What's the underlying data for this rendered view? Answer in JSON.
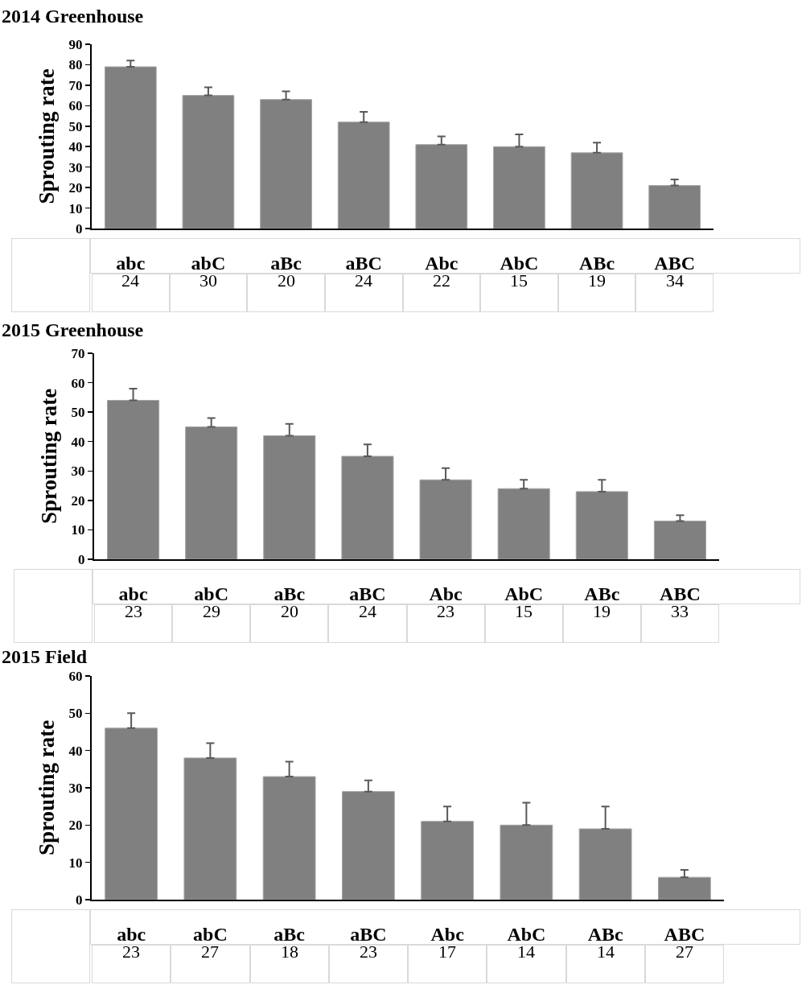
{
  "chart_data": [
    {
      "type": "bar",
      "title": "2014 Greenhouse",
      "ylabel": "Sprouting rate",
      "categories": [
        "abc",
        "abC",
        "aBc",
        "aBC",
        "Abc",
        "AbC",
        "ABc",
        "ABC"
      ],
      "values": [
        79,
        65,
        63,
        52,
        41,
        40,
        37,
        21
      ],
      "color": "#808080",
      "errors": [
        [
          79,
          82
        ],
        [
          65,
          69
        ],
        [
          63,
          67
        ],
        [
          52,
          57
        ],
        [
          41,
          45
        ],
        [
          40,
          46
        ],
        [
          37,
          42
        ],
        [
          21,
          24
        ]
      ],
      "ylim": [
        0,
        90
      ],
      "yticks": [
        0,
        10,
        20,
        30,
        40,
        50,
        60,
        70,
        80,
        90
      ],
      "annotations": [
        "24",
        "30",
        "20",
        "24",
        "22",
        "15",
        "19",
        "34"
      ]
    },
    {
      "type": "bar",
      "title": "2015 Greenhouse",
      "ylabel": "Sprouting rate",
      "categories": [
        "abc",
        "abC",
        "aBc",
        "aBC",
        "Abc",
        "AbC",
        "ABc",
        "ABC"
      ],
      "values": [
        54,
        45,
        42,
        35,
        27,
        24,
        23,
        13
      ],
      "color": "#808080",
      "errors": [
        [
          54,
          58
        ],
        [
          45,
          48
        ],
        [
          42,
          46
        ],
        [
          35,
          39
        ],
        [
          27,
          31
        ],
        [
          24,
          27
        ],
        [
          23,
          27
        ],
        [
          13,
          15
        ]
      ],
      "ylim": [
        0,
        70
      ],
      "yticks": [
        0,
        10,
        20,
        30,
        40,
        50,
        60,
        70
      ],
      "annotations": [
        "23",
        "29",
        "20",
        "24",
        "23",
        "15",
        "19",
        "33"
      ]
    },
    {
      "type": "bar",
      "title": "2015 Field",
      "ylabel": "Sprouting rate",
      "categories": [
        "abc",
        "abC",
        "aBc",
        "aBC",
        "Abc",
        "AbC",
        "ABc",
        "ABC"
      ],
      "values": [
        46,
        38,
        33,
        29,
        21,
        20,
        19,
        6
      ],
      "color": "#808080",
      "errors": [
        [
          46,
          50
        ],
        [
          38,
          42
        ],
        [
          33,
          37
        ],
        [
          29,
          32
        ],
        [
          21,
          25
        ],
        [
          20,
          26
        ],
        [
          19,
          25
        ],
        [
          6,
          8
        ]
      ],
      "ylim": [
        0,
        60
      ],
      "yticks": [
        0,
        10,
        20,
        30,
        40,
        50,
        60
      ],
      "annotations": [
        "23",
        "27",
        "18",
        "23",
        "17",
        "14",
        "14",
        "27"
      ]
    }
  ]
}
